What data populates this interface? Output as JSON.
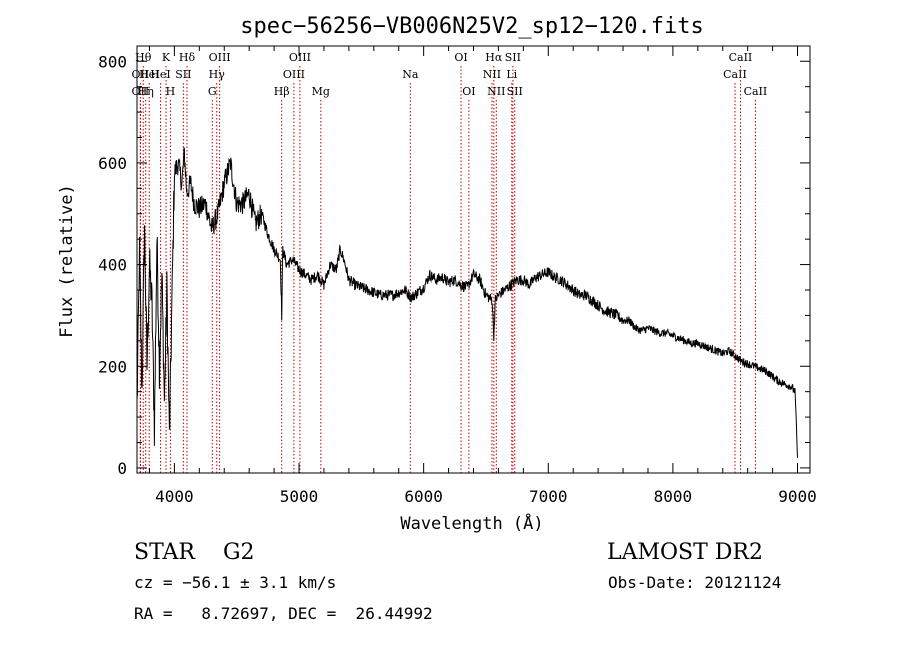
{
  "chart_data": {
    "type": "line",
    "title": "spec−56256−VB006N25V2_sp12−120.fits",
    "xlabel": "Wavelength (Å)",
    "ylabel": "Flux (relative)",
    "xlim": [
      3700,
      9100
    ],
    "ylim": [
      -10,
      830
    ],
    "x_ticks": [
      "4000",
      "5000",
      "6000",
      "7000",
      "8000",
      "9000"
    ],
    "y_ticks": [
      "0",
      "200",
      "400",
      "600",
      "800"
    ],
    "x_tick_values": [
      4000,
      5000,
      6000,
      7000,
      8000,
      9000
    ],
    "y_tick_values": [
      0,
      200,
      400,
      600,
      800
    ],
    "series": [
      {
        "x": [
          3700,
          3720,
          3740,
          3760,
          3780,
          3800,
          3820,
          3840,
          3860,
          3880,
          3900,
          3920,
          3940,
          3960,
          3980,
          4000,
          4030,
          4060,
          4080,
          4100,
          4130,
          4160,
          4200,
          4250,
          4300,
          4350,
          4400,
          4450,
          4500,
          4550,
          4600,
          4650,
          4700,
          4750,
          4800,
          4850,
          4861,
          4870,
          4900,
          4950,
          5000,
          5050,
          5100,
          5150,
          5200,
          5250,
          5300,
          5330,
          5360,
          5400,
          5450,
          5500,
          5550,
          5600,
          5650,
          5700,
          5750,
          5800,
          5850,
          5900,
          5950,
          6000,
          6050,
          6100,
          6150,
          6200,
          6250,
          6300,
          6350,
          6400,
          6450,
          6500,
          6550,
          6563,
          6575,
          6600,
          6650,
          6700,
          6750,
          6800,
          6850,
          6900,
          6950,
          7000,
          7050,
          7100,
          7150,
          7200,
          7250,
          7300,
          7350,
          7400,
          7450,
          7500,
          7550,
          7600,
          7650,
          7700,
          7750,
          7800,
          7850,
          7900,
          7950,
          8000,
          8050,
          8100,
          8150,
          8200,
          8250,
          8300,
          8350,
          8400,
          8450,
          8500,
          8550,
          8600,
          8650,
          8700,
          8750,
          8800,
          8850,
          8900,
          8950,
          8980,
          9000
        ],
        "y": [
          120,
          420,
          150,
          480,
          200,
          400,
          320,
          80,
          450,
          200,
          380,
          130,
          350,
          60,
          320,
          580,
          600,
          560,
          620,
          540,
          560,
          520,
          510,
          520,
          470,
          500,
          560,
          600,
          520,
          520,
          540,
          480,
          500,
          460,
          430,
          410,
          300,
          430,
          400,
          410,
          390,
          380,
          370,
          380,
          360,
          400,
          390,
          430,
          410,
          370,
          360,
          355,
          350,
          345,
          340,
          340,
          340,
          345,
          350,
          335,
          345,
          355,
          380,
          370,
          375,
          365,
          370,
          360,
          355,
          380,
          370,
          340,
          330,
          260,
          330,
          340,
          350,
          360,
          370,
          370,
          360,
          375,
          380,
          385,
          375,
          370,
          360,
          350,
          340,
          340,
          330,
          320,
          310,
          305,
          300,
          290,
          290,
          275,
          270,
          275,
          270,
          265,
          265,
          260,
          255,
          250,
          245,
          245,
          240,
          235,
          230,
          225,
          230,
          220,
          210,
          205,
          200,
          195,
          190,
          180,
          170,
          165,
          160,
          150,
          20
        ],
        "color": "#000000"
      }
    ],
    "annotations": [
      {
        "x": 3727,
        "label": "OII",
        "row": 0
      },
      {
        "x": 3727,
        "label": "OII",
        "row": 1
      },
      {
        "x": 3750,
        "label": "Hθ",
        "row": -1
      },
      {
        "x": 3770,
        "label": "Hη",
        "row": 1
      },
      {
        "x": 3798,
        "label": "HeI",
        "row": 0
      },
      {
        "x": 3889,
        "label": "HeI",
        "row": 0
      },
      {
        "x": 3933,
        "label": "K",
        "row": -1
      },
      {
        "x": 3968,
        "label": "H",
        "row": 1
      },
      {
        "x": 4072,
        "label": "SII",
        "row": 0
      },
      {
        "x": 4101,
        "label": "Hδ",
        "row": -1
      },
      {
        "x": 4304,
        "label": "G",
        "row": 1
      },
      {
        "x": 4340,
        "label": "Hγ",
        "row": 0
      },
      {
        "x": 4363,
        "label": "OIII",
        "row": -1
      },
      {
        "x": 4861,
        "label": "Hβ",
        "row": 1
      },
      {
        "x": 4959,
        "label": "OIII",
        "row": 0
      },
      {
        "x": 5007,
        "label": "OIII",
        "row": -1
      },
      {
        "x": 5175,
        "label": "Mg",
        "row": 1
      },
      {
        "x": 5893,
        "label": "Na",
        "row": 0
      },
      {
        "x": 6300,
        "label": "OI",
        "row": -1
      },
      {
        "x": 6363,
        "label": "OI",
        "row": 1
      },
      {
        "x": 6548,
        "label": "NII",
        "row": 0
      },
      {
        "x": 6563,
        "label": "Hα",
        "row": -1
      },
      {
        "x": 6583,
        "label": "NII",
        "row": 1
      },
      {
        "x": 6707,
        "label": "Li",
        "row": 0
      },
      {
        "x": 6716,
        "label": "SII",
        "row": -1
      },
      {
        "x": 6731,
        "label": "SII",
        "row": 1
      },
      {
        "x": 8498,
        "label": "CaII",
        "row": 0
      },
      {
        "x": 8542,
        "label": "CaII",
        "row": -1
      },
      {
        "x": 8662,
        "label": "CaII",
        "row": 1
      }
    ],
    "grid": false,
    "legend": "none"
  },
  "info": {
    "class_line": "STAR    G2",
    "survey": "LAMOST DR2",
    "cz_line": "cz = −56.1 ± 3.1 km/s",
    "obs_date": "Obs-Date: 20121124",
    "radec_line": "RA =   8.72697, DEC =  26.44992"
  },
  "colors": {
    "spectrum": "#000000",
    "line_markers": "#c00000",
    "axes": "#000000",
    "background": "#ffffff"
  }
}
